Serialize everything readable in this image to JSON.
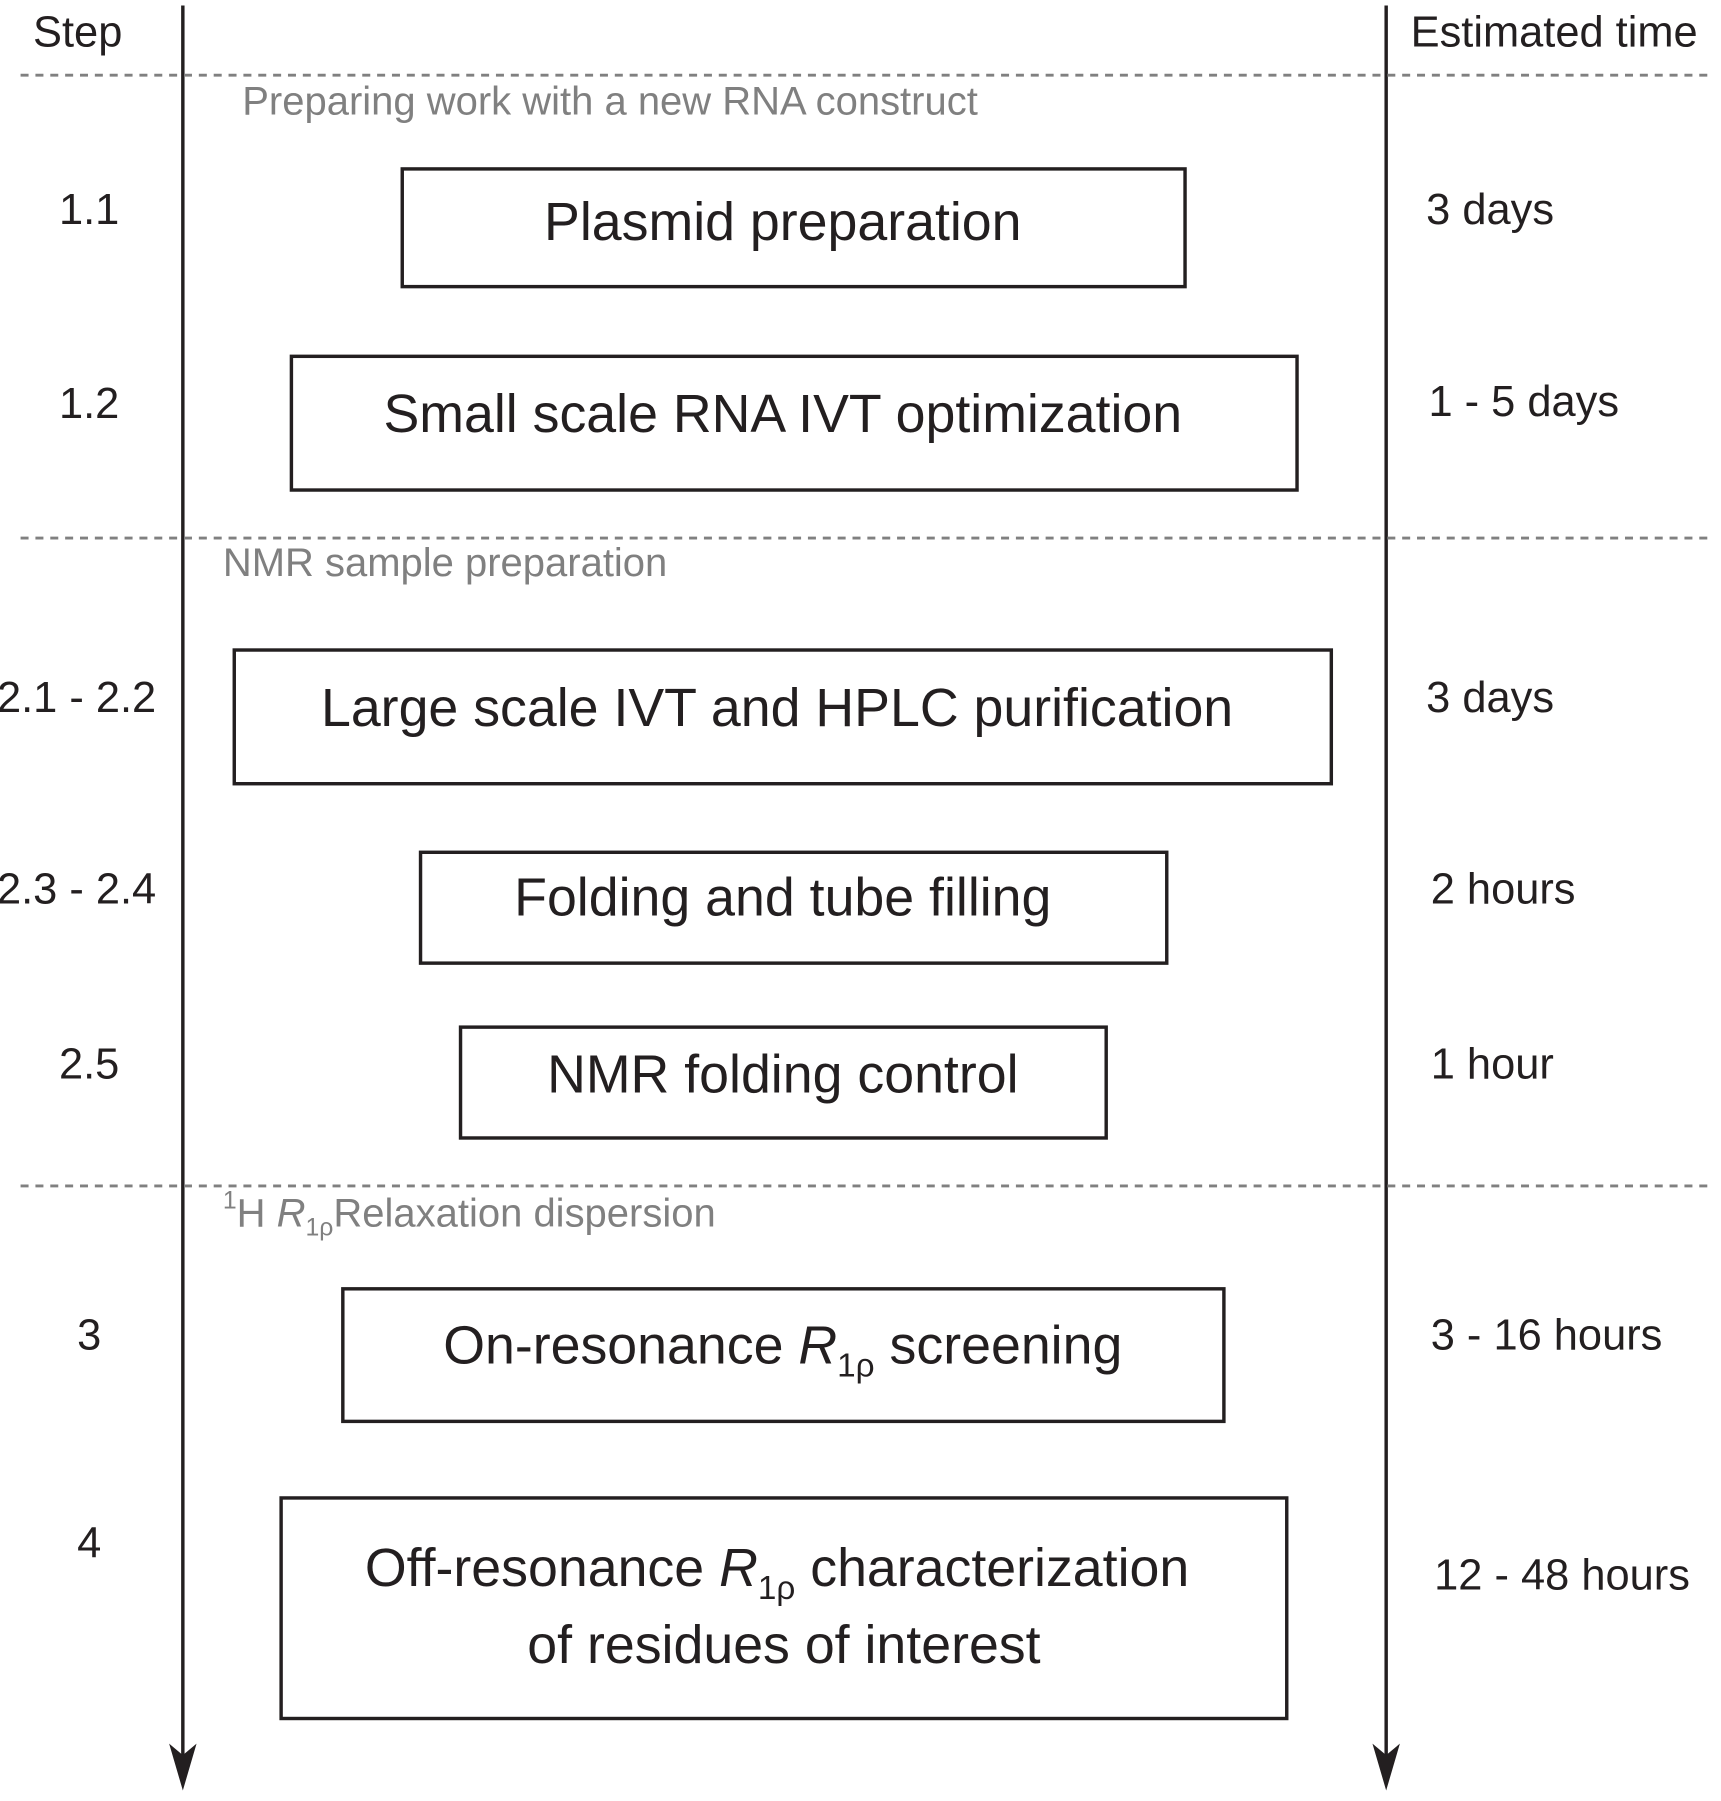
{
  "header": {
    "step": "Step",
    "time": "Estimated time"
  },
  "sections": [
    {
      "title": "Preparing work with a new RNA construct"
    },
    {
      "title": "NMR sample preparation"
    },
    {
      "title": {
        "sup": "1",
        "text": "H ",
        "italic": "R",
        "sub": "1ρ",
        "rest": "Relaxation dispersion"
      }
    }
  ],
  "steps": [
    {
      "step": "1.1",
      "label": "Plasmid preparation",
      "time": "3 days"
    },
    {
      "step": "1.2",
      "label": "Small scale RNA IVT optimization",
      "time": "1 - 5 days"
    },
    {
      "step": "2.1 - 2.2",
      "label": "Large scale IVT and HPLC purification",
      "time": "3 days"
    },
    {
      "step": "2.3 - 2.4",
      "label": "Folding and tube filling",
      "time": "2 hours"
    },
    {
      "step": "2.5",
      "label": "NMR folding control",
      "time": "1 hour"
    },
    {
      "step": "3",
      "label": {
        "text": "On-resonance ",
        "italic": "R",
        "sub": "1ρ",
        "rest": " screening"
      },
      "time": "3 - 16 hours"
    },
    {
      "step": "4",
      "label": {
        "text": "Off-resonance ",
        "italic": "R",
        "sub": "1ρ",
        "rest": " characterization",
        "line2": "of residues of interest"
      },
      "time": "12 - 48 hours"
    }
  ]
}
